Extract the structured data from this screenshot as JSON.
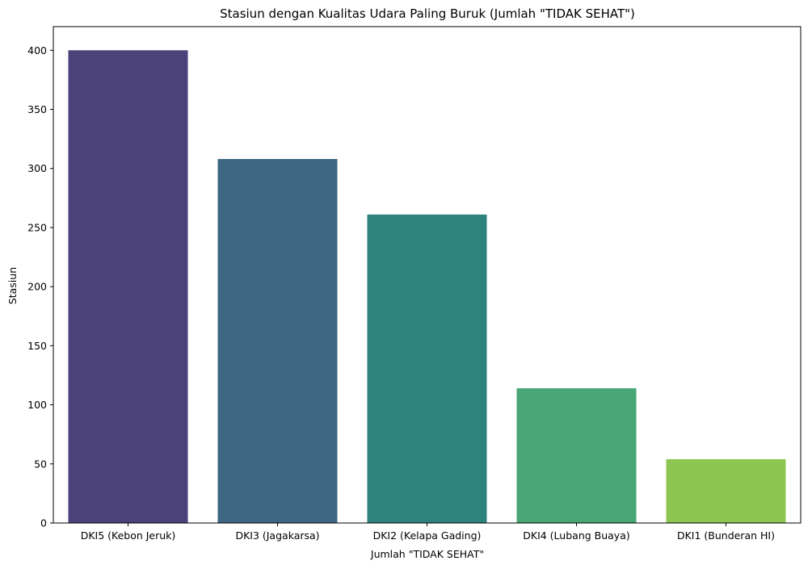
{
  "chart_data": {
    "type": "bar",
    "title": "Stasiun dengan Kualitas Udara Paling Buruk (Jumlah \"TIDAK SEHAT\")",
    "xlabel": "Jumlah \"TIDAK SEHAT\"",
    "ylabel": "Stasiun",
    "categories": [
      "DKI5 (Kebon Jeruk)",
      "DKI3 (Jagakarsa)",
      "DKI2 (Kelapa Gading)",
      "DKI4 (Lubang Buaya)",
      "DKI1 (Bunderan HI)"
    ],
    "values": [
      400,
      308,
      261,
      114,
      54
    ],
    "colors": [
      "#4a4279",
      "#3e6682",
      "#2f837e",
      "#48a676",
      "#8dc553"
    ],
    "ylim": [
      0,
      420
    ],
    "yticks": [
      0,
      50,
      100,
      150,
      200,
      250,
      300,
      350,
      400
    ],
    "grid": false,
    "legend": "none"
  }
}
